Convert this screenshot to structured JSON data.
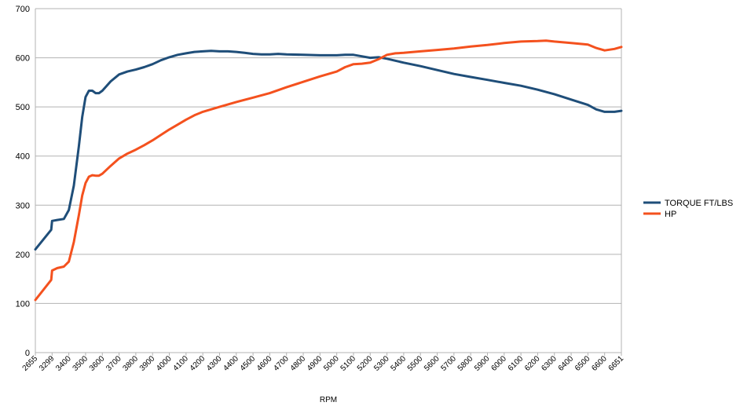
{
  "chart_data": {
    "type": "line",
    "title": "",
    "xlabel": "RPM",
    "ylabel": "",
    "ylim": [
      0,
      700
    ],
    "yticks": [
      0,
      100,
      200,
      300,
      400,
      500,
      600,
      700
    ],
    "xlim": [
      2655,
      6651
    ],
    "xtick_labels": [
      "2655",
      "3299",
      "3400",
      "3500",
      "3600",
      "3700",
      "3800",
      "3900",
      "4000",
      "4100",
      "4200",
      "4300",
      "4400",
      "4500",
      "4600",
      "4700",
      "4800",
      "4900",
      "5000",
      "5100",
      "5200",
      "5300",
      "5400",
      "5500",
      "5600",
      "5700",
      "5800",
      "5900",
      "6000",
      "6100",
      "6200",
      "6300",
      "6400",
      "6500",
      "6600",
      "6651"
    ],
    "grid": "horizontal",
    "legend_position": "right",
    "series": [
      {
        "name": "TORQUE FT/LBS",
        "color": "#1f4e79",
        "points": [
          [
            2655,
            210
          ],
          [
            3266,
            250
          ],
          [
            3299,
            268
          ],
          [
            3330,
            270
          ],
          [
            3370,
            272
          ],
          [
            3400,
            290
          ],
          [
            3430,
            340
          ],
          [
            3460,
            420
          ],
          [
            3480,
            480
          ],
          [
            3500,
            520
          ],
          [
            3520,
            533
          ],
          [
            3540,
            533
          ],
          [
            3560,
            528
          ],
          [
            3580,
            528
          ],
          [
            3600,
            533
          ],
          [
            3650,
            552
          ],
          [
            3700,
            566
          ],
          [
            3750,
            572
          ],
          [
            3800,
            576
          ],
          [
            3850,
            581
          ],
          [
            3900,
            587
          ],
          [
            3950,
            595
          ],
          [
            4000,
            601
          ],
          [
            4050,
            606
          ],
          [
            4100,
            609
          ],
          [
            4150,
            612
          ],
          [
            4200,
            613
          ],
          [
            4250,
            614
          ],
          [
            4300,
            613
          ],
          [
            4350,
            613
          ],
          [
            4400,
            612
          ],
          [
            4450,
            610
          ],
          [
            4500,
            608
          ],
          [
            4550,
            607
          ],
          [
            4600,
            607
          ],
          [
            4650,
            608
          ],
          [
            4700,
            607
          ],
          [
            4800,
            606
          ],
          [
            4900,
            605
          ],
          [
            5000,
            605
          ],
          [
            5050,
            606
          ],
          [
            5100,
            606
          ],
          [
            5150,
            603
          ],
          [
            5200,
            600
          ],
          [
            5250,
            601
          ],
          [
            5300,
            598
          ],
          [
            5350,
            594
          ],
          [
            5400,
            590
          ],
          [
            5500,
            583
          ],
          [
            5600,
            575
          ],
          [
            5700,
            567
          ],
          [
            5800,
            561
          ],
          [
            5900,
            555
          ],
          [
            6000,
            549
          ],
          [
            6100,
            543
          ],
          [
            6200,
            535
          ],
          [
            6300,
            526
          ],
          [
            6400,
            515
          ],
          [
            6500,
            504
          ],
          [
            6550,
            495
          ],
          [
            6600,
            490
          ],
          [
            6630,
            490
          ],
          [
            6651,
            492
          ]
        ]
      },
      {
        "name": "HP",
        "color": "#f4511e",
        "points": [
          [
            2655,
            107
          ],
          [
            3266,
            148
          ],
          [
            3299,
            167
          ],
          [
            3330,
            172
          ],
          [
            3370,
            175
          ],
          [
            3400,
            185
          ],
          [
            3430,
            225
          ],
          [
            3460,
            280
          ],
          [
            3480,
            320
          ],
          [
            3500,
            345
          ],
          [
            3520,
            358
          ],
          [
            3540,
            361
          ],
          [
            3560,
            360
          ],
          [
            3580,
            360
          ],
          [
            3600,
            364
          ],
          [
            3650,
            380
          ],
          [
            3700,
            395
          ],
          [
            3750,
            405
          ],
          [
            3800,
            413
          ],
          [
            3850,
            422
          ],
          [
            3900,
            432
          ],
          [
            3950,
            443
          ],
          [
            4000,
            454
          ],
          [
            4050,
            464
          ],
          [
            4100,
            474
          ],
          [
            4150,
            483
          ],
          [
            4200,
            490
          ],
          [
            4300,
            500
          ],
          [
            4400,
            510
          ],
          [
            4500,
            519
          ],
          [
            4600,
            528
          ],
          [
            4700,
            540
          ],
          [
            4800,
            551
          ],
          [
            4900,
            562
          ],
          [
            5000,
            572
          ],
          [
            5050,
            581
          ],
          [
            5100,
            587
          ],
          [
            5150,
            588
          ],
          [
            5200,
            590
          ],
          [
            5250,
            597
          ],
          [
            5300,
            606
          ],
          [
            5350,
            609
          ],
          [
            5400,
            610
          ],
          [
            5500,
            613
          ],
          [
            5600,
            616
          ],
          [
            5700,
            619
          ],
          [
            5800,
            623
          ],
          [
            5900,
            626
          ],
          [
            6000,
            630
          ],
          [
            6100,
            633
          ],
          [
            6200,
            634
          ],
          [
            6250,
            635
          ],
          [
            6300,
            633
          ],
          [
            6400,
            630
          ],
          [
            6500,
            627
          ],
          [
            6550,
            620
          ],
          [
            6600,
            615
          ],
          [
            6630,
            618
          ],
          [
            6651,
            622
          ]
        ]
      }
    ]
  }
}
